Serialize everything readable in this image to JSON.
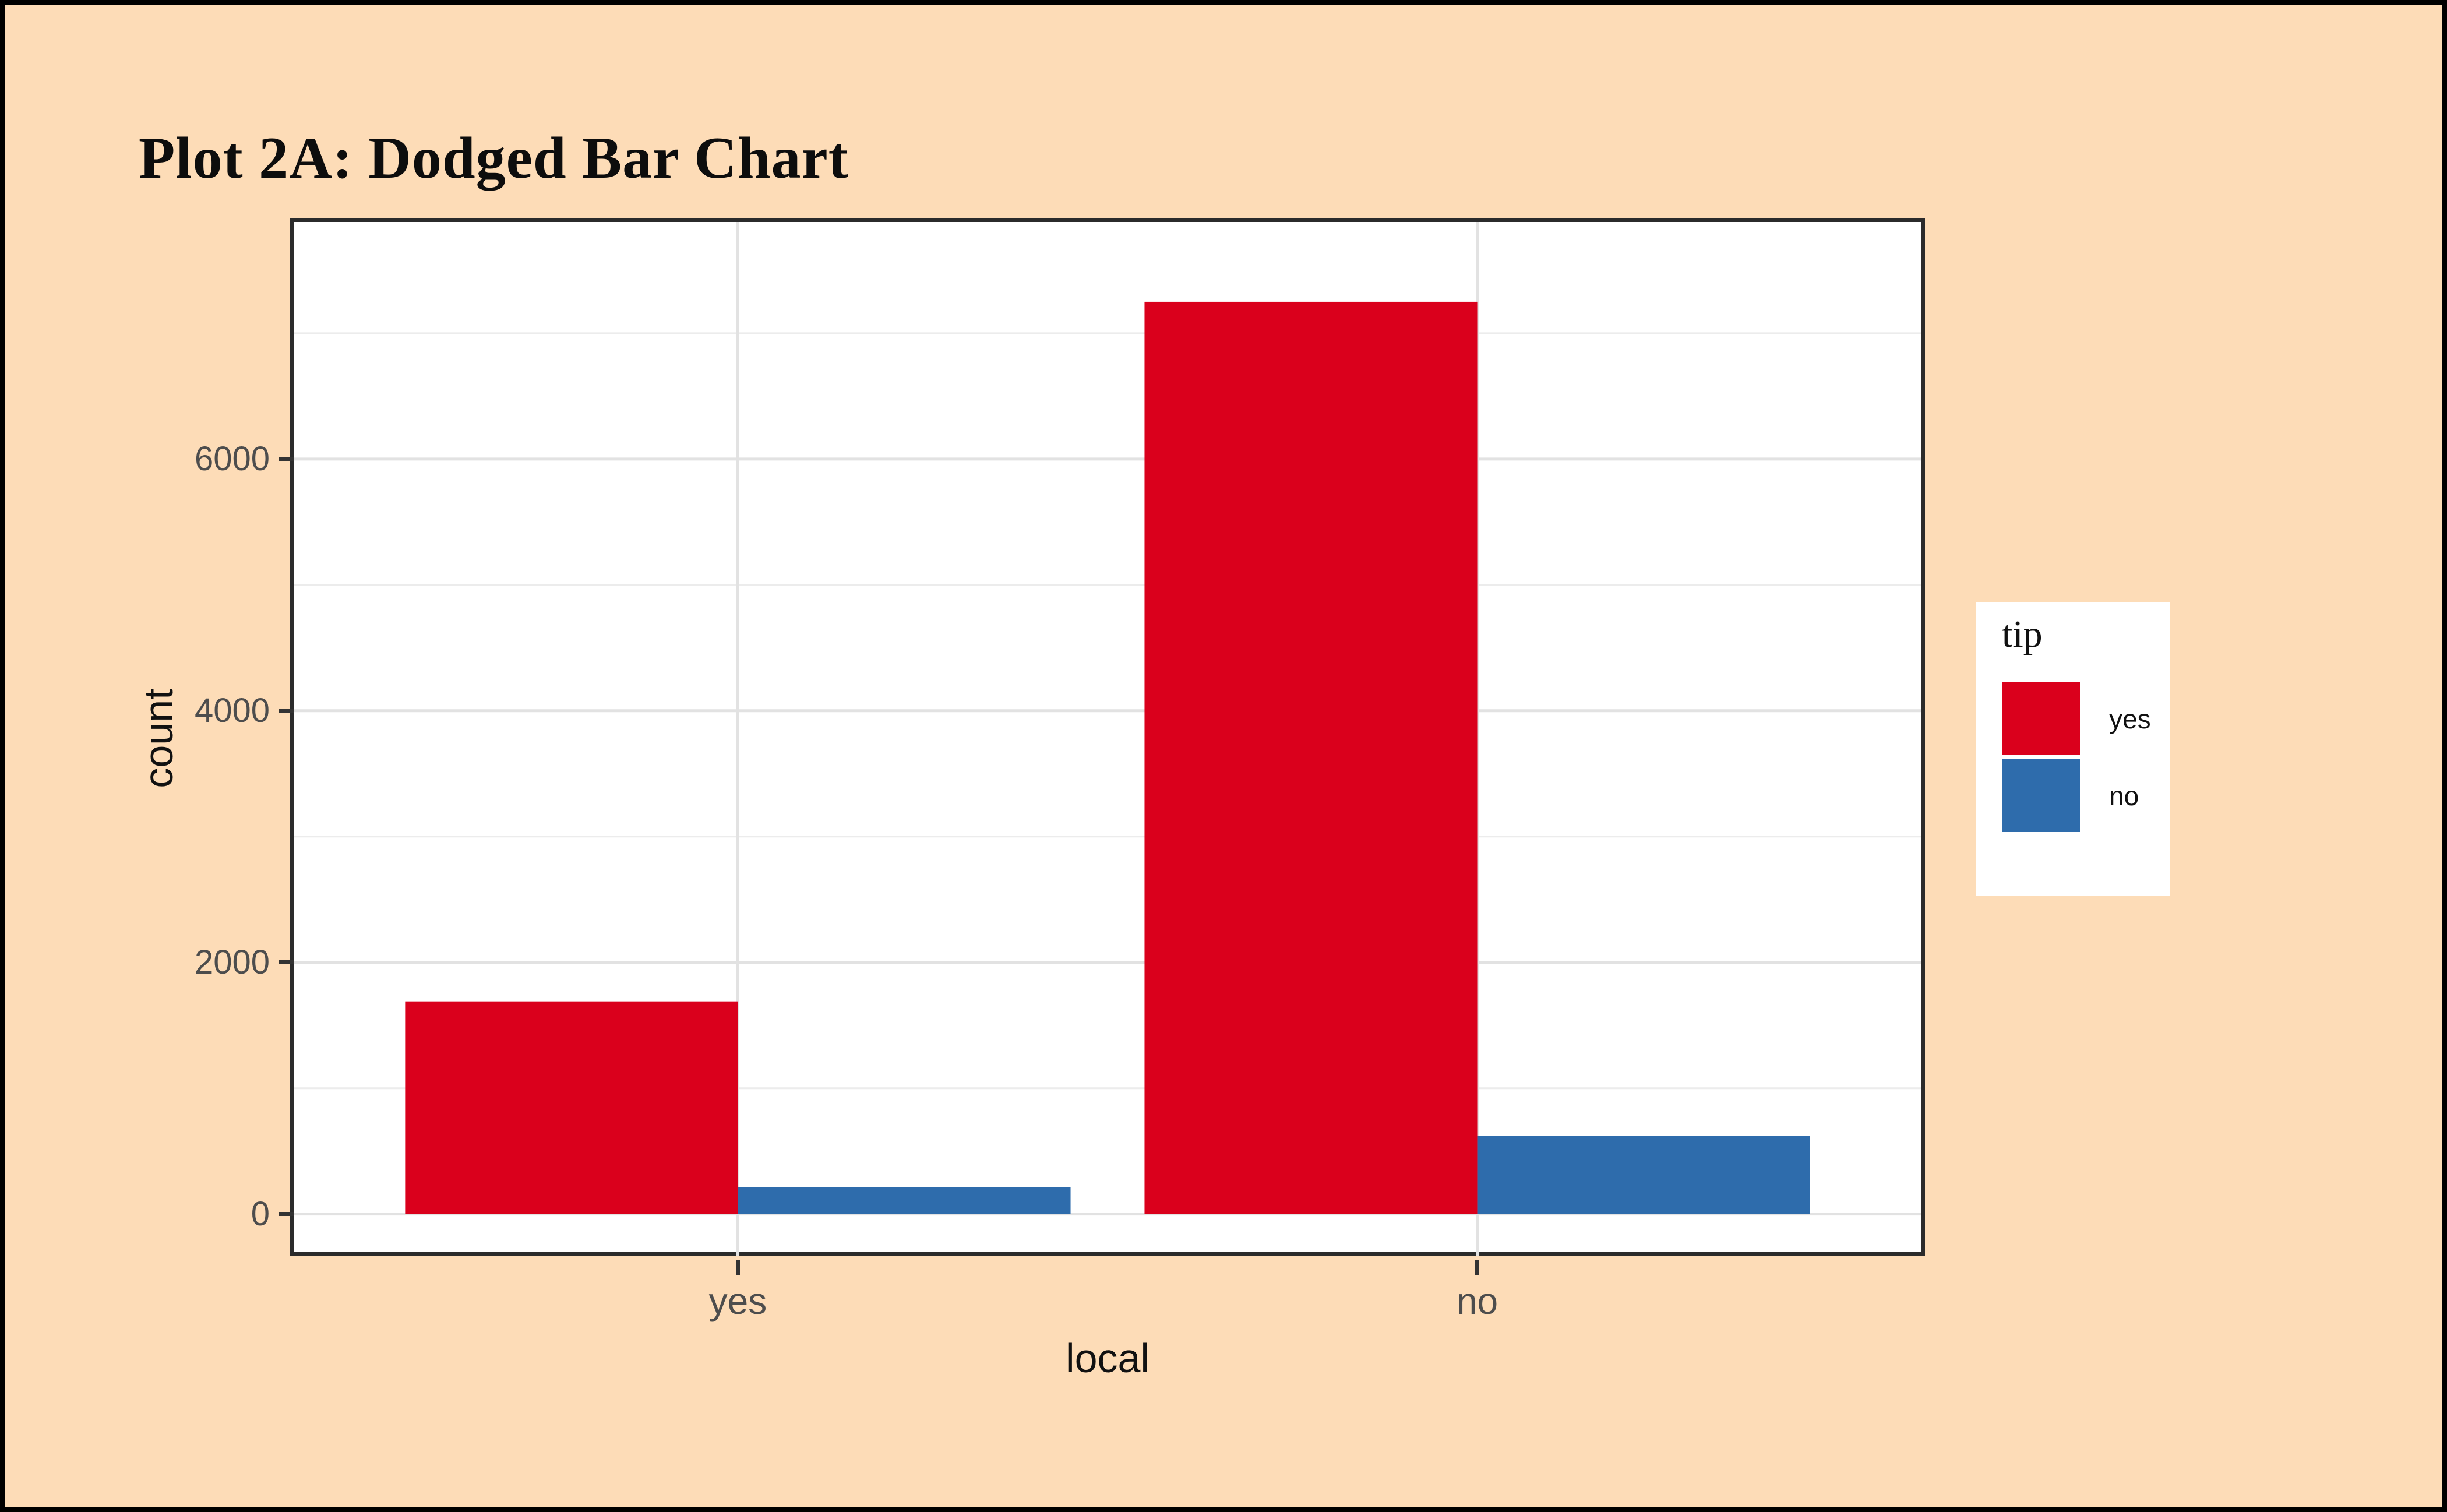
{
  "window": {
    "background": "#FDDCB7",
    "frame_border_color": "#000000",
    "title_color": "#0d0d0d"
  },
  "chart_data": {
    "type": "bar",
    "mode": "dodged",
    "title": "Plot 2A: Dodged Bar Chart",
    "xlabel": "local",
    "ylabel": "count",
    "categories": [
      "yes",
      "no"
    ],
    "series": [
      {
        "name": "yes",
        "color": "#DA001C",
        "values": [
          1690,
          7250
        ]
      },
      {
        "name": "no",
        "color": "#2E6CAC",
        "values": [
          215,
          620
        ]
      }
    ],
    "legend_title": "tip",
    "legend_position": "right",
    "yticks": [
      0,
      2000,
      4000,
      6000
    ],
    "minor_yticks": [
      1000,
      3000,
      5000,
      7000
    ],
    "ylim": [
      -335,
      7884
    ],
    "grid": true,
    "panel_background": "#FFFFFF",
    "grid_major_color": "#E2E2E2",
    "grid_minor_color": "#ECECEC",
    "panel_border_color": "#2B2B2B",
    "tick_mark_color": "#333333",
    "tick_label_color": "#4D4D4D",
    "axis_title_color": "#111111",
    "legend_background": "#FFFFFF",
    "legend_text_color": "#111111"
  }
}
